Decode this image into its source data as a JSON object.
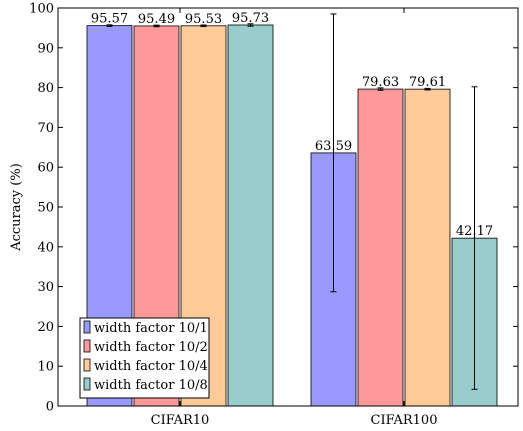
{
  "chart_data": {
    "type": "bar",
    "categories": [
      "CIFAR10",
      "CIFAR100"
    ],
    "series": [
      {
        "name": "width factor 10/1",
        "values": [
          95.57,
          63.59
        ],
        "err_low": [
          95.37,
          28.7
        ],
        "err_high": [
          95.77,
          98.5
        ],
        "color": "#9999ff"
      },
      {
        "name": "width factor 10/2",
        "values": [
          95.49,
          79.63
        ],
        "err_low": [
          95.29,
          79.33
        ],
        "err_high": [
          95.69,
          79.93
        ],
        "color": "#ff9999"
      },
      {
        "name": "width factor 10/4",
        "values": [
          95.53,
          79.61
        ],
        "err_low": [
          95.33,
          79.41
        ],
        "err_high": [
          95.73,
          79.81
        ],
        "color": "#ffcc99"
      },
      {
        "name": "width factor 10/8",
        "values": [
          95.73,
          42.17
        ],
        "err_low": [
          95.43,
          4.2
        ],
        "err_high": [
          96.03,
          80.2
        ],
        "color": "#99cccc"
      }
    ],
    "data_labels": [
      [
        "95.57",
        "63.59"
      ],
      [
        "95.49",
        "79.63"
      ],
      [
        "95.53",
        "79.61"
      ],
      [
        "95.73",
        "42.17"
      ]
    ],
    "ylabel": "Accuracy (%)",
    "xlabel": "",
    "ylim": [
      0,
      100
    ],
    "yticks": [
      "0",
      "10",
      "20",
      "30",
      "40",
      "50",
      "60",
      "70",
      "80",
      "90",
      "100"
    ],
    "legend_position": "bottom-left",
    "grid": false
  }
}
